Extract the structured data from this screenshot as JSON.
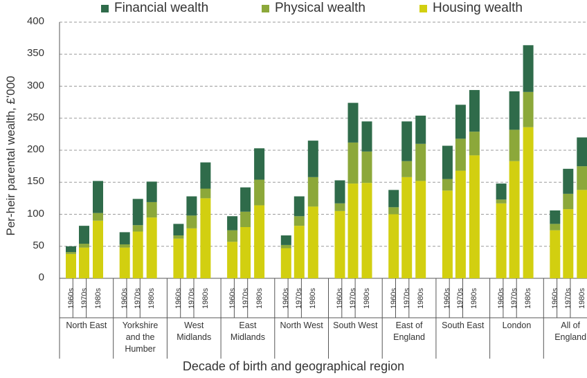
{
  "chart_data": {
    "type": "stacked-bar",
    "title": "",
    "ylabel": "Per-heir parental wealth, £'000",
    "xlabel": "Decade of birth and geographical region",
    "ylim": [
      0,
      400
    ],
    "yticks": [
      0,
      50,
      100,
      150,
      200,
      250,
      300,
      350,
      400
    ],
    "legend_position": "top",
    "series": [
      {
        "name": "Financial wealth",
        "color": "#2f6b4a"
      },
      {
        "name": "Physical wealth",
        "color": "#8ca83a"
      },
      {
        "name": "Housing wealth",
        "color": "#d2cf10"
      }
    ],
    "groups": [
      {
        "region_lines": [
          "North East"
        ],
        "bars": [
          {
            "decade": "1960s",
            "housing": 38,
            "physical": 3,
            "financial": 9
          },
          {
            "decade": "1970s",
            "housing": 48,
            "physical": 6,
            "financial": 28
          },
          {
            "decade": "1980s",
            "housing": 90,
            "physical": 12,
            "financial": 50
          }
        ]
      },
      {
        "region_lines": [
          "Yorkshire",
          "and the",
          "Humber"
        ],
        "bars": [
          {
            "decade": "1960s",
            "housing": 48,
            "physical": 5,
            "financial": 19
          },
          {
            "decade": "1970s",
            "housing": 73,
            "physical": 10,
            "financial": 41
          },
          {
            "decade": "1980s",
            "housing": 95,
            "physical": 24,
            "financial": 32
          }
        ]
      },
      {
        "region_lines": [
          "West",
          "Midlands"
        ],
        "bars": [
          {
            "decade": "1960s",
            "housing": 62,
            "physical": 5,
            "financial": 18
          },
          {
            "decade": "1970s",
            "housing": 78,
            "physical": 20,
            "financial": 30
          },
          {
            "decade": "1980s",
            "housing": 125,
            "physical": 15,
            "financial": 41
          }
        ]
      },
      {
        "region_lines": [
          "East",
          "Midlands"
        ],
        "bars": [
          {
            "decade": "1960s",
            "housing": 57,
            "physical": 18,
            "financial": 22
          },
          {
            "decade": "1970s",
            "housing": 80,
            "physical": 24,
            "financial": 38
          },
          {
            "decade": "1980s",
            "housing": 114,
            "physical": 40,
            "financial": 49
          }
        ]
      },
      {
        "region_lines": [
          "North West"
        ],
        "bars": [
          {
            "decade": "1960s",
            "housing": 47,
            "physical": 5,
            "financial": 15
          },
          {
            "decade": "1970s",
            "housing": 82,
            "physical": 15,
            "financial": 31
          },
          {
            "decade": "1980s",
            "housing": 112,
            "physical": 46,
            "financial": 57
          }
        ]
      },
      {
        "region_lines": [
          "South West"
        ],
        "bars": [
          {
            "decade": "1960s",
            "housing": 105,
            "physical": 12,
            "financial": 36
          },
          {
            "decade": "1970s",
            "housing": 148,
            "physical": 64,
            "financial": 62
          },
          {
            "decade": "1980s",
            "housing": 149,
            "physical": 49,
            "financial": 47
          }
        ]
      },
      {
        "region_lines": [
          "East of",
          "England"
        ],
        "bars": [
          {
            "decade": "1960s",
            "housing": 100,
            "physical": 11,
            "financial": 27
          },
          {
            "decade": "1970s",
            "housing": 158,
            "physical": 25,
            "financial": 62
          },
          {
            "decade": "1980s",
            "housing": 152,
            "physical": 58,
            "financial": 44
          }
        ]
      },
      {
        "region_lines": [
          "South East"
        ],
        "bars": [
          {
            "decade": "1960s",
            "housing": 137,
            "physical": 18,
            "financial": 52
          },
          {
            "decade": "1970s",
            "housing": 168,
            "physical": 50,
            "financial": 53
          },
          {
            "decade": "1980s",
            "housing": 192,
            "physical": 37,
            "financial": 65
          }
        ]
      },
      {
        "region_lines": [
          "London"
        ],
        "bars": [
          {
            "decade": "1960s",
            "housing": 117,
            "physical": 6,
            "financial": 25
          },
          {
            "decade": "1970s",
            "housing": 183,
            "physical": 49,
            "financial": 60
          },
          {
            "decade": "1980s",
            "housing": 236,
            "physical": 55,
            "financial": 73
          }
        ]
      },
      {
        "region_lines": [
          "All of",
          "England"
        ],
        "bars": [
          {
            "decade": "1960s",
            "housing": 75,
            "physical": 10,
            "financial": 21
          },
          {
            "decade": "1970s",
            "housing": 108,
            "physical": 24,
            "financial": 39
          },
          {
            "decade": "1980s",
            "housing": 138,
            "physical": 37,
            "financial": 45
          }
        ]
      }
    ]
  }
}
